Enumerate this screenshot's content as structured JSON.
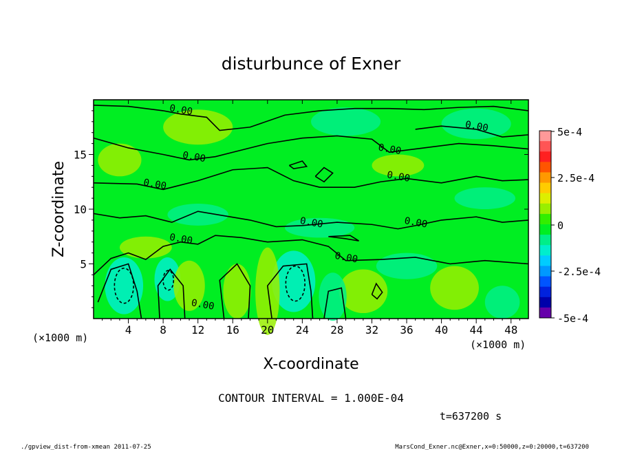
{
  "colors": {
    "background": "#00ee22",
    "contour": "#000000",
    "frame": "#000000"
  },
  "chart_data": {
    "type": "contour",
    "title": "disturbunce of Exner",
    "xlabel": "X-coordinate",
    "ylabel": "Z-coordinate",
    "x_unit_left": "(×1000 m)",
    "x_unit_right": "(×1000 m)",
    "xlim": [
      0,
      50
    ],
    "ylim": [
      0,
      20
    ],
    "x_ticks": [
      "4",
      "8",
      "12",
      "16",
      "20",
      "24",
      "28",
      "32",
      "36",
      "40",
      "44",
      "48"
    ],
    "y_ticks": [
      "5",
      "10",
      "15"
    ],
    "contour_interval_text": "CONTOUR INTERVAL = 1.000E-04",
    "contour_labels": [
      {
        "x": 10.0,
        "z": 18.8,
        "text": "0.00"
      },
      {
        "x": 44.0,
        "z": 17.3,
        "text": "0.00"
      },
      {
        "x": 34.0,
        "z": 15.2,
        "text": "0.00"
      },
      {
        "x": 11.5,
        "z": 14.5,
        "text": "0.00"
      },
      {
        "x": 35.0,
        "z": 12.7,
        "text": "0.00"
      },
      {
        "x": 7.0,
        "z": 12.0,
        "text": "0.00"
      },
      {
        "x": 25.0,
        "z": 8.5,
        "text": "0.00"
      },
      {
        "x": 37.0,
        "z": 8.5,
        "text": "0.00"
      },
      {
        "x": 10.0,
        "z": 7.0,
        "text": "0.00"
      },
      {
        "x": 29.0,
        "z": 5.3,
        "text": "0.00"
      },
      {
        "x": 12.5,
        "z": 1.0,
        "text": "0.00"
      }
    ],
    "colorbar": {
      "min": -0.0005,
      "max": 0.0005,
      "labels": [
        "5e-4",
        "2.5e-4",
        "0",
        "-2.5e-4",
        "-5e-4"
      ],
      "colors": [
        "#ff9999",
        "#ff5555",
        "#ff2020",
        "#ff5500",
        "#ff9900",
        "#ffcc00",
        "#ddee00",
        "#99ee00",
        "#33ee00",
        "#00ee22",
        "#00ee88",
        "#00eecc",
        "#00ccff",
        "#0099ff",
        "#0055ff",
        "#0022dd",
        "#0000aa",
        "#6600aa"
      ]
    },
    "time_text": "t=637200 s"
  },
  "footer": {
    "left": "./gpview_dist-from-xmean  2011-07-25",
    "right": "MarsCond_Exner.nc@Exner,x=0:50000,z=0:20000,t=637200"
  }
}
